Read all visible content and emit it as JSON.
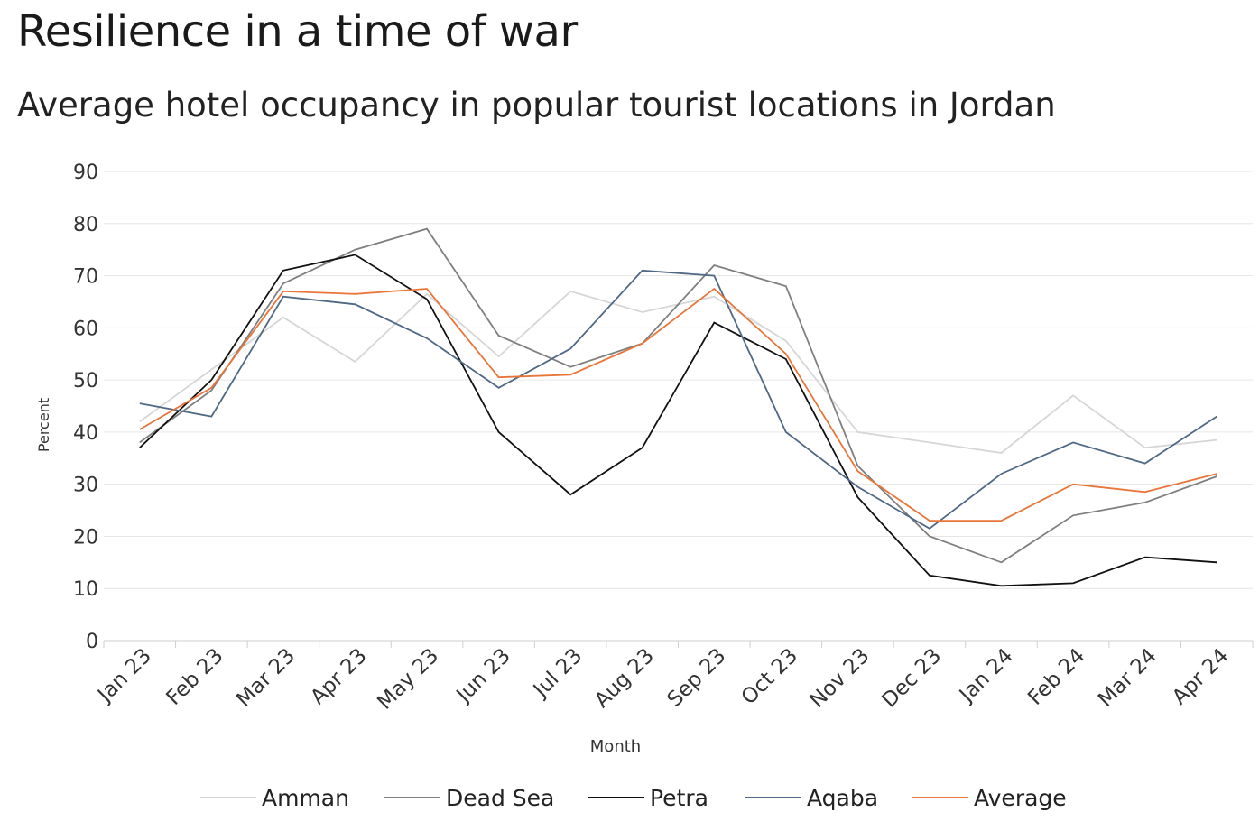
{
  "header": {
    "title": "Resilience in a time of war",
    "subtitle": "Average hotel occupancy in popular tourist locations in Jordan"
  },
  "chart_data": {
    "type": "line",
    "title": "Resilience in a time of war",
    "subtitle": "Average hotel occupancy in popular tourist locations in Jordan",
    "xlabel": "Month",
    "ylabel": "Percent",
    "ylim": [
      0,
      90
    ],
    "yticks": [
      0,
      10,
      20,
      30,
      40,
      50,
      60,
      70,
      80,
      90
    ],
    "grid": true,
    "legend_position": "bottom",
    "categories": [
      "Jan 23",
      "Feb 23",
      "Mar 23",
      "Apr 23",
      "May 23",
      "Jun 23",
      "Jul 23",
      "Aug 23",
      "Sep 23",
      "Oct 23",
      "Nov 23",
      "Dec 23",
      "Jan 24",
      "Feb 24",
      "Mar 24",
      "Apr 24"
    ],
    "series": [
      {
        "name": "Amman",
        "color": "#d6d6d6",
        "values": [
          42,
          52,
          62,
          53.5,
          66.5,
          54.5,
          67,
          63,
          66,
          57.5,
          40,
          38,
          36,
          47,
          37,
          38.5
        ]
      },
      {
        "name": "Dead Sea",
        "color": "#7f7f7f",
        "values": [
          38,
          48,
          68.5,
          75,
          79,
          58.5,
          52.5,
          57,
          72,
          68,
          33.5,
          20,
          15,
          24,
          26.5,
          31.5
        ]
      },
      {
        "name": "Petra",
        "color": "#111111",
        "values": [
          37,
          50,
          71,
          74,
          65.5,
          40,
          28,
          37,
          61,
          54,
          27.5,
          12.5,
          10.5,
          11,
          16,
          15
        ]
      },
      {
        "name": "Aqaba",
        "color": "#4f6883",
        "values": [
          45.5,
          43,
          66,
          64.5,
          58,
          48.5,
          56,
          71,
          70,
          40,
          29.5,
          21.5,
          32,
          38,
          34,
          43
        ]
      },
      {
        "name": "Average",
        "color": "#e8763a",
        "values": [
          40.5,
          48.5,
          67,
          66.5,
          67.5,
          50.5,
          51,
          57,
          67.5,
          55,
          32.5,
          23,
          23,
          30,
          28.5,
          32
        ]
      }
    ]
  }
}
